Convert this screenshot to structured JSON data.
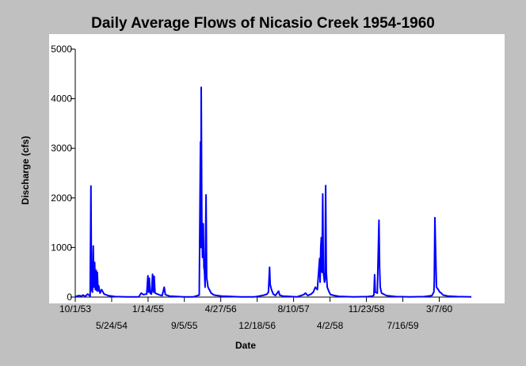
{
  "chart_data": {
    "type": "line",
    "title": "Daily Average Flows of Nicasio Creek 1954-1960",
    "xlabel": "Date",
    "ylabel": "Discharge (cfs)",
    "ylim": [
      0,
      5000
    ],
    "yticks": [
      0,
      1000,
      2000,
      3000,
      4000,
      5000
    ],
    "xlim": [
      "1953-10-01",
      "1960-09-30"
    ],
    "xticks": [
      {
        "date": "1953-10-01",
        "label": "10/1/53"
      },
      {
        "date": "1954-05-24",
        "label": "5/24/54"
      },
      {
        "date": "1955-01-14",
        "label": "1/14/55"
      },
      {
        "date": "1955-09-05",
        "label": "9/5/55"
      },
      {
        "date": "1956-04-27",
        "label": "4/27/56"
      },
      {
        "date": "1956-12-18",
        "label": "12/18/56"
      },
      {
        "date": "1957-08-10",
        "label": "8/10/57"
      },
      {
        "date": "1958-04-02",
        "label": "4/2/58"
      },
      {
        "date": "1958-11-23",
        "label": "11/23/58"
      },
      {
        "date": "1959-07-16",
        "label": "7/16/59"
      },
      {
        "date": "1960-03-07",
        "label": "3/7/60"
      }
    ],
    "grid": false,
    "legend": "none",
    "colors": {
      "line": "#0000ff",
      "background": "#ffffff",
      "frame": "#c0c0c0"
    },
    "series": [
      {
        "points": [
          [
            "1953-10-01",
            10
          ],
          [
            "1953-10-25",
            30
          ],
          [
            "1953-11-10",
            20
          ],
          [
            "1953-11-20",
            40
          ],
          [
            "1953-12-05",
            15
          ],
          [
            "1953-12-20",
            60
          ],
          [
            "1954-01-05",
            20
          ],
          [
            "1954-01-10",
            2240
          ],
          [
            "1954-01-14",
            150
          ],
          [
            "1954-01-20",
            100
          ],
          [
            "1954-01-25",
            1030
          ],
          [
            "1954-01-29",
            200
          ],
          [
            "1954-02-03",
            700
          ],
          [
            "1954-02-08",
            150
          ],
          [
            "1954-02-13",
            540
          ],
          [
            "1954-02-17",
            130
          ],
          [
            "1954-02-20",
            500
          ],
          [
            "1954-02-25",
            120
          ],
          [
            "1954-03-01",
            230
          ],
          [
            "1954-03-10",
            80
          ],
          [
            "1954-03-20",
            150
          ],
          [
            "1954-04-05",
            60
          ],
          [
            "1954-05-01",
            30
          ],
          [
            "1954-06-15",
            10
          ],
          [
            "1954-09-01",
            5
          ],
          [
            "1954-11-15",
            5
          ],
          [
            "1954-12-01",
            80
          ],
          [
            "1954-12-15",
            50
          ],
          [
            "1955-01-05",
            60
          ],
          [
            "1955-01-13",
            430
          ],
          [
            "1955-01-17",
            100
          ],
          [
            "1955-01-22",
            380
          ],
          [
            "1955-01-27",
            80
          ],
          [
            "1955-02-05",
            60
          ],
          [
            "1955-02-12",
            460
          ],
          [
            "1955-02-17",
            100
          ],
          [
            "1955-02-22",
            420
          ],
          [
            "1955-02-28",
            80
          ],
          [
            "1955-03-15",
            60
          ],
          [
            "1955-04-01",
            40
          ],
          [
            "1955-04-15",
            30
          ],
          [
            "1955-04-28",
            200
          ],
          [
            "1955-05-05",
            50
          ],
          [
            "1955-06-01",
            20
          ],
          [
            "1955-09-01",
            5
          ],
          [
            "1955-11-01",
            5
          ],
          [
            "1955-12-10",
            40
          ],
          [
            "1955-12-18",
            3130
          ],
          [
            "1955-12-21",
            1000
          ],
          [
            "1955-12-23",
            4230
          ],
          [
            "1955-12-27",
            1500
          ],
          [
            "1955-12-31",
            800
          ],
          [
            "1956-01-05",
            1480
          ],
          [
            "1956-01-09",
            600
          ],
          [
            "1956-01-13",
            530
          ],
          [
            "1956-01-17",
            200
          ],
          [
            "1956-01-23",
            2060
          ],
          [
            "1956-01-27",
            400
          ],
          [
            "1956-02-05",
            200
          ],
          [
            "1956-02-25",
            80
          ],
          [
            "1956-03-15",
            40
          ],
          [
            "1956-05-01",
            20
          ],
          [
            "1956-09-01",
            5
          ],
          [
            "1956-12-01",
            5
          ],
          [
            "1957-01-01",
            20
          ],
          [
            "1957-02-01",
            40
          ],
          [
            "1957-02-20",
            60
          ],
          [
            "1957-03-01",
            100
          ],
          [
            "1957-03-08",
            600
          ],
          [
            "1957-03-12",
            250
          ],
          [
            "1957-03-20",
            150
          ],
          [
            "1957-04-01",
            60
          ],
          [
            "1957-04-15",
            30
          ],
          [
            "1957-05-05",
            120
          ],
          [
            "1957-05-12",
            40
          ],
          [
            "1957-06-01",
            20
          ],
          [
            "1957-09-01",
            5
          ],
          [
            "1957-10-15",
            50
          ],
          [
            "1957-10-25",
            80
          ],
          [
            "1957-11-10",
            30
          ],
          [
            "1957-12-01",
            60
          ],
          [
            "1957-12-15",
            100
          ],
          [
            "1957-12-28",
            200
          ],
          [
            "1958-01-10",
            150
          ],
          [
            "1958-01-25",
            780
          ],
          [
            "1958-01-28",
            300
          ],
          [
            "1958-02-01",
            1000
          ],
          [
            "1958-02-05",
            1200
          ],
          [
            "1958-02-09",
            500
          ],
          [
            "1958-02-14",
            2080
          ],
          [
            "1958-02-18",
            500
          ],
          [
            "1958-02-25",
            300
          ],
          [
            "1958-03-01",
            350
          ],
          [
            "1958-03-05",
            2250
          ],
          [
            "1958-03-09",
            500
          ],
          [
            "1958-03-15",
            200
          ],
          [
            "1958-03-25",
            120
          ],
          [
            "1958-04-05",
            50
          ],
          [
            "1958-05-01",
            30
          ],
          [
            "1958-06-01",
            15
          ],
          [
            "1958-09-01",
            5
          ],
          [
            "1958-12-01",
            10
          ],
          [
            "1959-01-01",
            20
          ],
          [
            "1959-01-10",
            40
          ],
          [
            "1959-01-15",
            450
          ],
          [
            "1959-01-19",
            100
          ],
          [
            "1959-02-01",
            80
          ],
          [
            "1959-02-12",
            1550
          ],
          [
            "1959-02-16",
            600
          ],
          [
            "1959-02-20",
            200
          ],
          [
            "1959-03-01",
            80
          ],
          [
            "1959-04-01",
            30
          ],
          [
            "1959-06-01",
            10
          ],
          [
            "1959-09-01",
            5
          ],
          [
            "1959-12-01",
            10
          ],
          [
            "1960-01-20",
            30
          ],
          [
            "1960-01-28",
            80
          ],
          [
            "1960-02-01",
            100
          ],
          [
            "1960-02-04",
            300
          ],
          [
            "1960-02-08",
            1600
          ],
          [
            "1960-02-12",
            1000
          ],
          [
            "1960-02-18",
            200
          ],
          [
            "1960-03-01",
            150
          ],
          [
            "1960-03-10",
            100
          ],
          [
            "1960-03-20",
            80
          ],
          [
            "1960-04-01",
            40
          ],
          [
            "1960-05-01",
            20
          ],
          [
            "1960-07-01",
            10
          ],
          [
            "1960-09-30",
            5
          ]
        ]
      }
    ]
  }
}
